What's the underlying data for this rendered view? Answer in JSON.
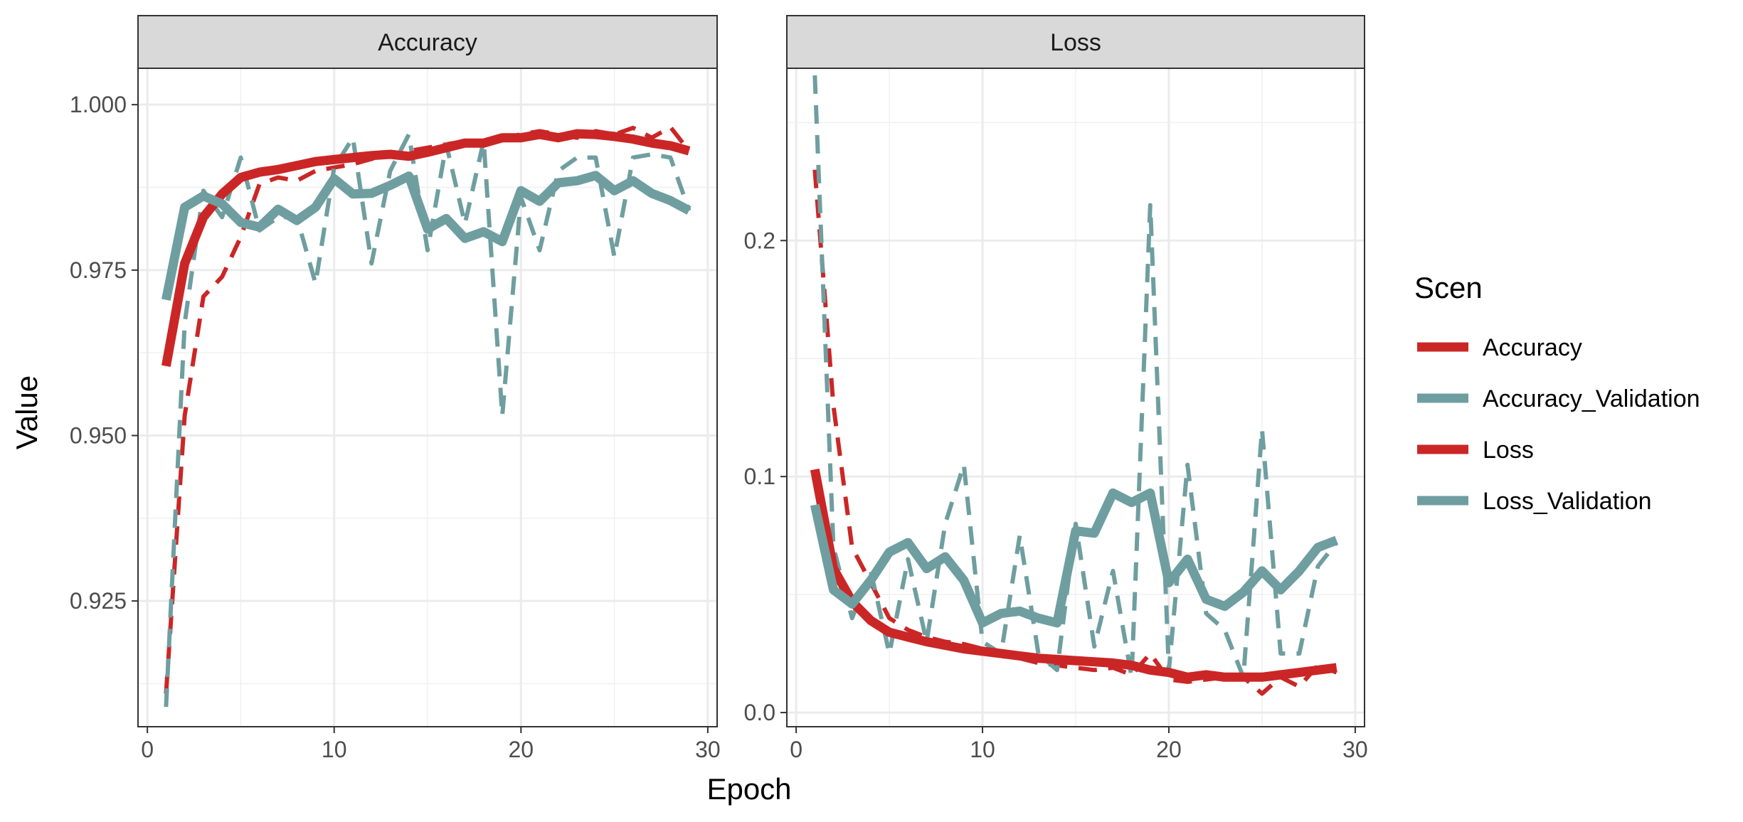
{
  "chart_data": {
    "type": "line",
    "xlabel": "Epoch",
    "ylabel": "Value",
    "x": [
      1,
      2,
      3,
      4,
      5,
      6,
      7,
      8,
      9,
      10,
      11,
      12,
      13,
      14,
      15,
      16,
      17,
      18,
      19,
      20,
      21,
      22,
      23,
      24,
      25,
      26,
      27,
      28,
      29
    ],
    "panels": [
      {
        "title": "Accuracy",
        "xlim": [
          -0.5,
          30.5
        ],
        "ylim": [
          0.906,
          1.0055
        ],
        "x_ticks": [
          0,
          10,
          20,
          30
        ],
        "y_ticks": [
          0.925,
          0.95,
          0.975,
          1.0
        ],
        "y_tick_labels": [
          "0.925",
          "0.950",
          "0.975",
          "1.000"
        ],
        "series": [
          {
            "name": "Accuracy",
            "style": "smooth-solid",
            "color": "#cb2626",
            "values": [
              0.9605,
              0.976,
              0.983,
              0.9865,
              0.989,
              0.9898,
              0.9902,
              0.9908,
              0.9914,
              0.9917,
              0.992,
              0.9923,
              0.9925,
              0.9922,
              0.9928,
              0.9935,
              0.9942,
              0.9942,
              0.995,
              0.995,
              0.9955,
              0.995,
              0.9956,
              0.9955,
              0.9952,
              0.9948,
              0.9942,
              0.9938,
              0.993
            ]
          },
          {
            "name": "Accuracy",
            "style": "raw-dashed",
            "color": "#cb2626",
            "values": [
              0.911,
              0.953,
              0.971,
              0.974,
              0.98,
              0.988,
              0.989,
              0.9885,
              0.99,
              0.9905,
              0.991,
              0.9918,
              0.9925,
              0.993,
              0.9935,
              0.994,
              0.9945,
              0.994,
              0.995,
              0.9955,
              0.996,
              0.9955,
              0.995,
              0.996,
              0.9955,
              0.9965,
              0.995,
              0.9966,
              0.993
            ]
          },
          {
            "name": "Accuracy_Validation",
            "style": "smooth-solid",
            "color": "#6f9ea0",
            "values": [
              0.9705,
              0.9845,
              0.9862,
              0.985,
              0.9822,
              0.9815,
              0.9842,
              0.9825,
              0.9845,
              0.9888,
              0.9865,
              0.9866,
              0.9878,
              0.9892,
              0.9812,
              0.9828,
              0.9798,
              0.9808,
              0.9793,
              0.987,
              0.9854,
              0.9882,
              0.9885,
              0.9893,
              0.987,
              0.9885,
              0.9866,
              0.9855,
              0.984
            ]
          },
          {
            "name": "Accuracy_Validation",
            "style": "raw-dashed",
            "color": "#6f9ea0",
            "values": [
              0.909,
              0.967,
              0.987,
              0.983,
              0.992,
              0.981,
              0.983,
              0.983,
              0.973,
              0.9905,
              0.995,
              0.976,
              0.99,
              0.9955,
              0.978,
              0.994,
              0.982,
              0.9945,
              0.953,
              0.986,
              0.978,
              0.99,
              0.992,
              0.992,
              0.977,
              0.992,
              0.9925,
              0.992,
              0.984
            ]
          }
        ]
      },
      {
        "title": "Loss",
        "xlim": [
          -0.5,
          30.5
        ],
        "ylim": [
          -0.006,
          0.273
        ],
        "x_ticks": [
          0,
          10,
          20,
          30
        ],
        "y_ticks": [
          0.0,
          0.1,
          0.2
        ],
        "y_tick_labels": [
          "0.0",
          "0.1",
          "0.2"
        ],
        "series": [
          {
            "name": "Loss",
            "style": "smooth-solid",
            "color": "#cb2626",
            "values": [
              0.103,
              0.061,
              0.047,
              0.039,
              0.034,
              0.032,
              0.03,
              0.0285,
              0.027,
              0.026,
              0.025,
              0.024,
              0.023,
              0.0225,
              0.022,
              0.0215,
              0.021,
              0.02,
              0.018,
              0.017,
              0.015,
              0.016,
              0.015,
              0.015,
              0.015,
              0.016,
              0.017,
              0.018,
              0.019
            ]
          },
          {
            "name": "Loss",
            "style": "raw-dashed",
            "color": "#cb2626",
            "values": [
              0.23,
              0.13,
              0.07,
              0.055,
              0.04,
              0.035,
              0.032,
              0.03,
              0.029,
              0.027,
              0.024,
              0.023,
              0.021,
              0.02,
              0.019,
              0.018,
              0.019,
              0.016,
              0.025,
              0.014,
              0.013,
              0.014,
              0.015,
              0.015,
              0.008,
              0.015,
              0.011,
              0.02,
              0.017
            ]
          },
          {
            "name": "Loss_Validation",
            "style": "smooth-solid",
            "color": "#6f9ea0",
            "values": [
              0.088,
              0.052,
              0.046,
              0.056,
              0.068,
              0.072,
              0.061,
              0.066,
              0.056,
              0.038,
              0.042,
              0.043,
              0.04,
              0.038,
              0.077,
              0.076,
              0.093,
              0.089,
              0.093,
              0.055,
              0.065,
              0.048,
              0.045,
              0.051,
              0.06,
              0.052,
              0.06,
              0.07,
              0.073
            ]
          },
          {
            "name": "Loss_Validation",
            "style": "raw-dashed",
            "color": "#6f9ea0",
            "values": [
              0.27,
              0.07,
              0.04,
              0.06,
              0.025,
              0.065,
              0.03,
              0.08,
              0.105,
              0.03,
              0.025,
              0.075,
              0.025,
              0.018,
              0.08,
              0.028,
              0.06,
              0.015,
              0.215,
              0.018,
              0.105,
              0.042,
              0.035,
              0.015,
              0.12,
              0.025,
              0.025,
              0.062,
              0.072
            ]
          }
        ]
      }
    ],
    "legend": {
      "title": "Scen",
      "placement": "right",
      "entries": [
        {
          "label": "Accuracy",
          "color": "#cb2626"
        },
        {
          "label": "Accuracy_Validation",
          "color": "#6f9ea0"
        },
        {
          "label": "Loss",
          "color": "#cb2626"
        },
        {
          "label": "Loss_Validation",
          "color": "#6f9ea0"
        }
      ]
    },
    "grid": true
  }
}
